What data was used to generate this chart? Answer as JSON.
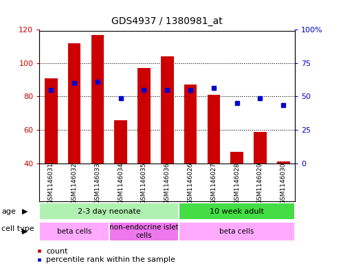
{
  "title": "GDS4937 / 1380981_at",
  "samples": [
    "GSM1146031",
    "GSM1146032",
    "GSM1146033",
    "GSM1146034",
    "GSM1146035",
    "GSM1146036",
    "GSM1146026",
    "GSM1146027",
    "GSM1146028",
    "GSM1146029",
    "GSM1146030"
  ],
  "count_values": [
    91,
    112,
    117,
    66,
    97,
    104,
    87,
    81,
    47,
    59,
    41
  ],
  "percentile_values_left_scale": [
    84,
    88,
    89,
    79,
    84,
    84,
    84,
    85,
    76,
    79,
    75
  ],
  "bar_bottom": 40,
  "ylim_left": [
    40,
    120
  ],
  "ylim_right": [
    0,
    100
  ],
  "yticks_left": [
    40,
    60,
    80,
    100,
    120
  ],
  "ytick_labels_left": [
    "40",
    "60",
    "80",
    "100",
    "120"
  ],
  "yticks_right": [
    0,
    25,
    50,
    75,
    100
  ],
  "ytick_labels_right": [
    "0",
    "25",
    "50",
    "75",
    "100%"
  ],
  "bar_color": "#cc0000",
  "dot_color": "#0000cc",
  "age_groups": [
    {
      "label": "2-3 day neonate",
      "start": 0,
      "end": 6,
      "color": "#b0f0b0"
    },
    {
      "label": "10 week adult",
      "start": 6,
      "end": 11,
      "color": "#44dd44"
    }
  ],
  "cell_type_groups": [
    {
      "label": "beta cells",
      "start": 0,
      "end": 3,
      "color": "#ffaaff"
    },
    {
      "label": "non-endocrine islet\ncells",
      "start": 3,
      "end": 6,
      "color": "#ee77ee"
    },
    {
      "label": "beta cells",
      "start": 6,
      "end": 11,
      "color": "#ffaaff"
    }
  ],
  "bg_color": "#ffffff",
  "plot_bg": "#ffffff",
  "sample_bg": "#cccccc",
  "border_color": "#000000"
}
